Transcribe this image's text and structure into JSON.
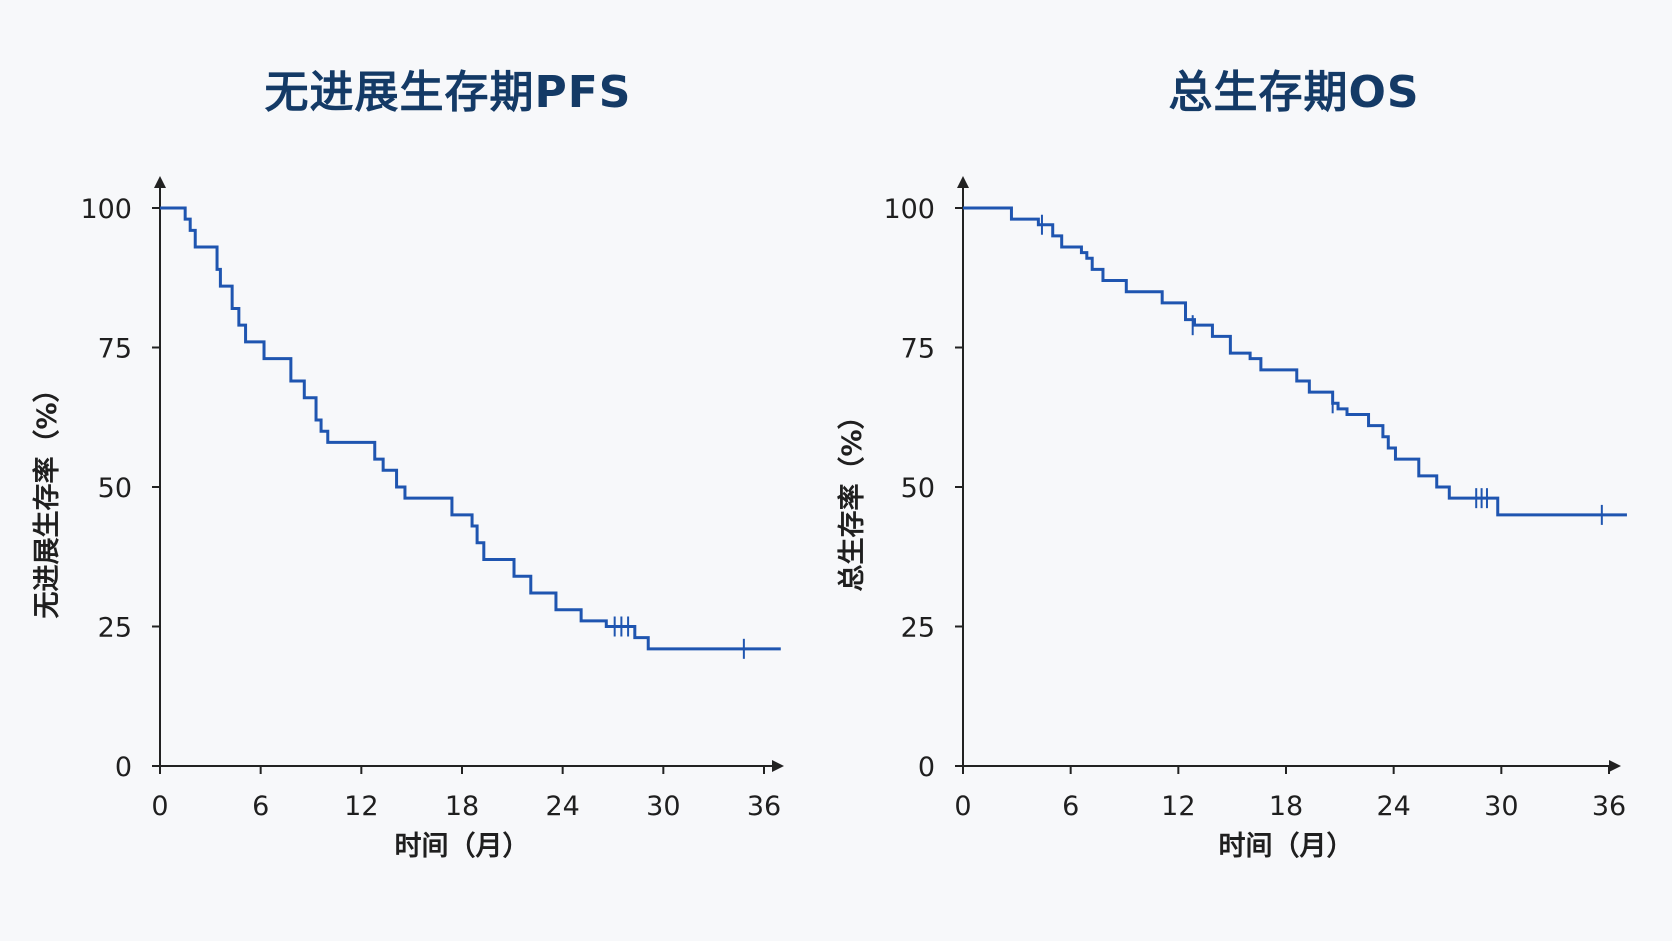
{
  "chart_data": [
    {
      "type": "line",
      "title": "无进展生存期PFS",
      "xlabel": "时间（月）",
      "ylabel": "无进展生存率（%）",
      "xlim": [
        0,
        37
      ],
      "ylim": [
        0,
        105
      ],
      "xticks": [
        0,
        6,
        12,
        18,
        24,
        30,
        36
      ],
      "yticks": [
        0,
        25,
        50,
        75,
        100
      ],
      "grid": false,
      "color": "#1f55b0",
      "series": [
        {
          "x": [
            0,
            1.5,
            1.8,
            2.1,
            3.4,
            3.6,
            4.3,
            4.7,
            5.1,
            6.2,
            7.8,
            8.6,
            9.3,
            9.6,
            10,
            12.8,
            13.3,
            14.1,
            14.6,
            17.4,
            18.6,
            18.9,
            19.3,
            21.1,
            22.1,
            23.6,
            25.1,
            26.6,
            28.3,
            29.1,
            37
          ],
          "y": [
            100,
            98,
            96,
            93,
            89,
            86,
            82,
            79,
            76,
            73,
            69,
            66,
            62,
            60,
            58,
            55,
            53,
            50,
            48,
            45,
            43,
            40,
            37,
            34,
            31,
            28,
            26,
            25,
            23,
            21,
            21
          ]
        }
      ],
      "censor": [
        {
          "x": 27.1,
          "y": 25
        },
        {
          "x": 27.5,
          "y": 25
        },
        {
          "x": 27.9,
          "y": 25
        },
        {
          "x": 34.8,
          "y": 21
        }
      ]
    },
    {
      "type": "line",
      "title": "总生存期OS",
      "xlabel": "时间（月）",
      "ylabel": "总生存率（%）",
      "xlim": [
        0,
        37
      ],
      "ylim": [
        0,
        105
      ],
      "xticks": [
        0,
        6,
        12,
        18,
        24,
        30,
        36
      ],
      "yticks": [
        0,
        25,
        50,
        75,
        100
      ],
      "grid": false,
      "color": "#1f55b0",
      "series": [
        {
          "x": [
            0,
            2.7,
            4.2,
            5,
            5.5,
            6.6,
            6.9,
            7.2,
            7.8,
            9.1,
            11.1,
            12.4,
            12.9,
            13.9,
            14.9,
            16,
            16.6,
            18.6,
            18.9,
            19.3,
            20.1,
            20.6,
            20.9,
            21.4,
            22.6,
            23.4,
            23.7,
            24.1,
            25.4,
            26.4,
            27.1,
            27.8,
            28.3,
            29.8,
            37
          ],
          "y": [
            100,
            98,
            97,
            95,
            93,
            92,
            91,
            89,
            87,
            85,
            83,
            80,
            79,
            77,
            74,
            73,
            71,
            69,
            69,
            67,
            67,
            65,
            64,
            63,
            61,
            59,
            57,
            55,
            52,
            50,
            48,
            48,
            48,
            45,
            45
          ]
        }
      ],
      "censor": [
        {
          "x": 4.4,
          "y": 97
        },
        {
          "x": 12.8,
          "y": 79
        },
        {
          "x": 20.6,
          "y": 65
        },
        {
          "x": 28.6,
          "y": 48
        },
        {
          "x": 28.9,
          "y": 48
        },
        {
          "x": 29.2,
          "y": 48
        },
        {
          "x": 35.6,
          "y": 45
        }
      ]
    }
  ]
}
